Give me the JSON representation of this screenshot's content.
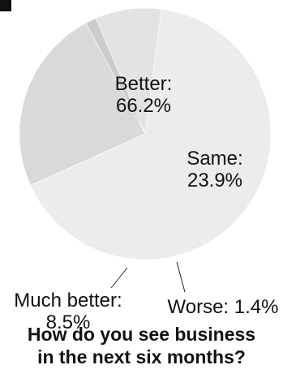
{
  "chart_data": {
    "type": "pie",
    "title_lines": [
      "How do you see business",
      "in the next six months?"
    ],
    "slices": [
      {
        "name": "Better",
        "value": 66.2,
        "label_lines": [
          "Better:",
          "66.2%"
        ],
        "color": "#ececec"
      },
      {
        "name": "Same",
        "value": 23.9,
        "label_lines": [
          "Same:",
          "23.9%"
        ],
        "color": "#d9d9d9"
      },
      {
        "name": "Worse",
        "value": 1.4,
        "label_lines": [
          "Worse: 1.4%"
        ],
        "color": "#cccccc"
      },
      {
        "name": "Much better",
        "value": 8.5,
        "label_lines": [
          "Much better:",
          "8.5%"
        ],
        "color": "#e3e3e3"
      }
    ],
    "legend": "none",
    "label_placement": "on-slice and outside with leader lines"
  }
}
